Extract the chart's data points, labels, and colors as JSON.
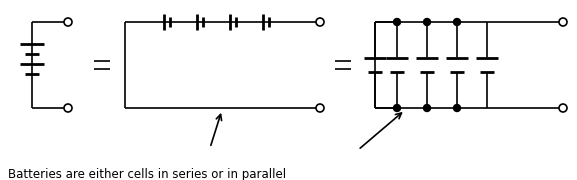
{
  "fig_width": 5.77,
  "fig_height": 1.8,
  "dpi": 100,
  "bg_color": "#ffffff",
  "line_color": "#000000",
  "line_width": 1.2,
  "caption": "Batteries are either cells in series or in parallel",
  "caption_fontsize": 8.5
}
